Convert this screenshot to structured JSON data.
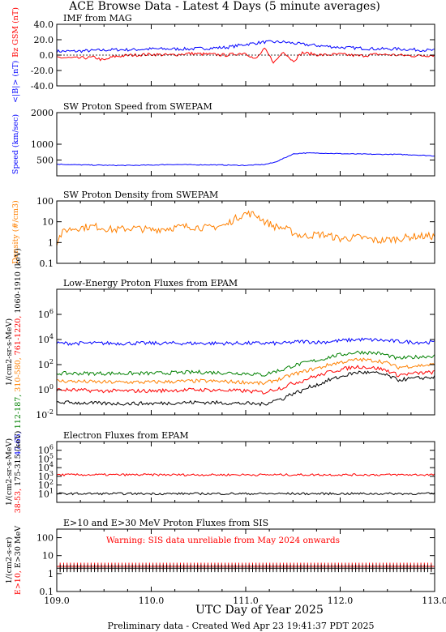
{
  "header": {
    "title": "ACE Browse Data - Latest 4 Days (5 minute averages)",
    "xlabel": "UTC Day of Year 2025",
    "footer": "Preliminary data - Created Wed Apr 23 19:41:37 PDT 2025",
    "warning": "Warning: SIS data unreliable from May 2024 onwards"
  },
  "chart_data": [
    {
      "type": "line",
      "title": "IMF from MAG",
      "ylabel_parts": [
        {
          "text": "<|B|> (nT)",
          "color": "#0000ff"
        },
        {
          "text": "Bz GSM (nT)",
          "color": "#ff0000"
        }
      ],
      "xlim": [
        109.0,
        113.0
      ],
      "ylim": [
        -40,
        40
      ],
      "yscale": "linear",
      "y_ticks": [
        "40.0",
        "20.0",
        "0.0",
        "-20.0",
        "-40.0"
      ],
      "x_ticks": [
        "109.0",
        "110.0",
        "111.0",
        "112.0",
        "113.0"
      ],
      "series": [
        {
          "color": "#0000ff",
          "x": [
            109.0,
            109.2,
            109.4,
            109.6,
            109.8,
            110.0,
            110.2,
            110.4,
            110.6,
            110.8,
            111.0,
            111.2,
            111.4,
            111.6,
            111.8,
            112.0,
            112.2,
            112.4,
            112.6,
            112.8,
            113.0
          ],
          "y": [
            5,
            5,
            6,
            7,
            7,
            8,
            8,
            8,
            9,
            10,
            14,
            17,
            17,
            14,
            12,
            10,
            9,
            8,
            8,
            7,
            6
          ]
        },
        {
          "color": "#ff0000",
          "x": [
            109.0,
            109.2,
            109.4,
            109.5,
            109.6,
            109.8,
            110.0,
            110.2,
            110.4,
            110.6,
            110.8,
            111.0,
            111.1,
            111.2,
            111.3,
            111.4,
            111.5,
            111.6,
            111.8,
            112.0,
            112.2,
            112.4,
            112.6,
            112.8,
            113.0
          ],
          "y": [
            -3,
            -4,
            -3,
            -7,
            -2,
            0,
            1,
            0,
            2,
            1,
            0,
            3,
            -6,
            8,
            -10,
            5,
            -8,
            3,
            0,
            1,
            -1,
            1,
            0,
            -1,
            0
          ]
        }
      ]
    },
    {
      "type": "line",
      "title": "SW Proton Speed from SWEPAM",
      "ylabel_parts": [
        {
          "text": "Speed (km/sec)",
          "color": "#0000ff"
        }
      ],
      "xlim": [
        109.0,
        113.0
      ],
      "ylim": [
        0,
        2000
      ],
      "yscale": "linear",
      "y_ticks": [
        "2000",
        "1000",
        "500"
      ],
      "x_ticks": [
        "109.0",
        "110.0",
        "111.0",
        "112.0",
        "113.0"
      ],
      "series": [
        {
          "color": "#0000ff",
          "x": [
            109.0,
            109.2,
            109.4,
            109.6,
            109.8,
            110.0,
            110.2,
            110.4,
            110.6,
            110.8,
            111.0,
            111.2,
            111.3,
            111.4,
            111.5,
            111.6,
            111.8,
            112.0,
            112.2,
            112.4,
            112.6,
            112.8,
            113.0
          ],
          "y": [
            370,
            350,
            340,
            330,
            330,
            340,
            360,
            350,
            350,
            340,
            330,
            360,
            420,
            550,
            690,
            720,
            720,
            700,
            690,
            680,
            680,
            660,
            630
          ]
        }
      ]
    },
    {
      "type": "line",
      "title": "SW Proton Density from SWEPAM",
      "ylabel_parts": [
        {
          "text": "Density (#/cm3)",
          "color": "#ff8000"
        }
      ],
      "xlim": [
        109.0,
        113.0
      ],
      "ylim": [
        0.1,
        100
      ],
      "yscale": "log",
      "y_ticks": [
        "100",
        "10",
        "1",
        "0.1"
      ],
      "x_ticks": [
        "109.0",
        "110.0",
        "111.0",
        "112.0",
        "113.0"
      ],
      "series": [
        {
          "color": "#ff8000",
          "x": [
            109.0,
            109.1,
            109.2,
            109.4,
            109.6,
            109.8,
            110.0,
            110.2,
            110.4,
            110.6,
            110.8,
            110.9,
            111.0,
            111.1,
            111.2,
            111.3,
            111.4,
            111.5,
            111.6,
            111.8,
            112.0,
            112.2,
            112.4,
            112.6,
            112.8,
            113.0
          ],
          "y": [
            1.0,
            4.0,
            5.0,
            6.0,
            4.0,
            5.0,
            4.0,
            5.0,
            6.0,
            5.0,
            7.0,
            15.0,
            25.0,
            22.0,
            10.0,
            6.0,
            5.0,
            3.0,
            2.0,
            2.5,
            1.5,
            1.8,
            1.2,
            1.5,
            2.0,
            2.0
          ]
        }
      ]
    },
    {
      "type": "line",
      "title": "Low-Energy Proton Fluxes from EPAM",
      "ylabel_parts": [
        {
          "text": "1/(cm2-sr-s-MeV)",
          "color": "#000000"
        },
        {
          "text": "47-65,",
          "color": "#0000ff"
        },
        {
          "text": "112-187,",
          "color": "#008000"
        },
        {
          "text": "310-580,",
          "color": "#ff8000"
        },
        {
          "text": "761-1220,",
          "color": "#ff0000"
        },
        {
          "text": "1060-1910 (keV)",
          "color": "#000000"
        }
      ],
      "xlim": [
        109.0,
        113.0
      ],
      "ylim": [
        0.01,
        100000000
      ],
      "yscale": "log",
      "y_ticks": [
        "10^6",
        "10^4",
        "10^2",
        "10^0",
        "10^-2"
      ],
      "x_ticks": [
        "109.0",
        "110.0",
        "111.0",
        "112.0",
        "113.0"
      ],
      "series": [
        {
          "name": "47-65",
          "color": "#0000ff",
          "x": [
            109.0,
            109.5,
            110.0,
            110.5,
            111.0,
            111.2,
            111.4,
            111.6,
            111.8,
            112.0,
            112.2,
            112.4,
            112.6,
            112.8,
            113.0
          ],
          "y": [
            5000,
            5000,
            5000,
            5000,
            5000,
            5000,
            5000,
            7000,
            6000,
            8000,
            10000,
            9000,
            7000,
            6000,
            6000
          ]
        },
        {
          "name": "112-187",
          "color": "#008000",
          "x": [
            109.0,
            109.5,
            110.0,
            110.5,
            111.0,
            111.2,
            111.4,
            111.6,
            111.8,
            112.0,
            112.2,
            112.4,
            112.6,
            112.8,
            113.0
          ],
          "y": [
            20,
            20,
            20,
            25,
            20,
            15,
            40,
            120,
            250,
            600,
            1000,
            800,
            300,
            400,
            500
          ]
        },
        {
          "name": "310-580",
          "color": "#ff8000",
          "x": [
            109.0,
            109.5,
            110.0,
            110.5,
            111.0,
            111.2,
            111.4,
            111.6,
            111.8,
            112.0,
            112.2,
            112.4,
            112.6,
            112.8,
            113.0
          ],
          "y": [
            5,
            4,
            4,
            5,
            4,
            3,
            8,
            25,
            60,
            150,
            250,
            200,
            60,
            80,
            100
          ]
        },
        {
          "name": "761-1220",
          "color": "#ff0000",
          "x": [
            109.0,
            109.5,
            110.0,
            110.5,
            111.0,
            111.2,
            111.4,
            111.6,
            111.8,
            112.0,
            112.2,
            112.4,
            112.6,
            112.8,
            113.0
          ],
          "y": [
            1,
            0.8,
            0.8,
            1,
            0.8,
            0.6,
            1.5,
            5,
            15,
            40,
            70,
            50,
            15,
            20,
            25
          ]
        },
        {
          "name": "1060-1910",
          "color": "#000000",
          "x": [
            109.0,
            109.5,
            110.0,
            110.5,
            111.0,
            111.2,
            111.4,
            111.6,
            111.8,
            112.0,
            112.2,
            112.4,
            112.6,
            112.8,
            113.0
          ],
          "y": [
            0.1,
            0.08,
            0.08,
            0.1,
            0.08,
            0.07,
            0.2,
            0.8,
            3,
            10,
            25,
            20,
            6,
            8,
            10
          ]
        }
      ]
    },
    {
      "type": "line",
      "title": "Electron Fluxes from EPAM",
      "ylabel_parts": [
        {
          "text": "1/(cm2-sr-s-MeV)",
          "color": "#000000"
        },
        {
          "text": "38-53,",
          "color": "#ff0000"
        },
        {
          "text": "175-315 (keV)",
          "color": "#000000"
        }
      ],
      "xlim": [
        109.0,
        113.0
      ],
      "ylim": [
        1,
        10000000
      ],
      "yscale": "log",
      "y_ticks": [
        "10^6",
        "10^5",
        "10^4",
        "10^3",
        "10^2",
        "10^1"
      ],
      "x_ticks": [
        "109.0",
        "110.0",
        "111.0",
        "112.0",
        "113.0"
      ],
      "series": [
        {
          "name": "38-53",
          "color": "#ff0000",
          "x": [
            109.0,
            110.0,
            111.0,
            112.0,
            113.0
          ],
          "y": [
            1500,
            1500,
            1500,
            1500,
            1500
          ]
        },
        {
          "name": "175-315",
          "color": "#000000",
          "x": [
            109.0,
            110.0,
            111.0,
            112.0,
            113.0
          ],
          "y": [
            10,
            10,
            10,
            10,
            10
          ]
        }
      ]
    },
    {
      "type": "line",
      "title": "E>10 and E>30 MeV Proton Fluxes from SIS",
      "ylabel_parts": [
        {
          "text": "1/(cm2-s-sr)",
          "color": "#000000"
        },
        {
          "text": "E>10,",
          "color": "#ff0000"
        },
        {
          "text": "E>30 MeV",
          "color": "#000000"
        }
      ],
      "xlim": [
        109.0,
        113.0
      ],
      "ylim": [
        0.1,
        300
      ],
      "yscale": "log",
      "y_ticks": [
        "100",
        "10",
        "1",
        "0.1"
      ],
      "x_ticks": [
        "109.0",
        "110.0",
        "111.0",
        "112.0",
        "113.0"
      ],
      "series": [
        {
          "name": "E>10",
          "color": "#ff0000",
          "x": [
            109.0,
            110.0,
            111.0,
            112.0,
            113.0
          ],
          "y": [
            2.5,
            2.5,
            2.5,
            2.5,
            2.5
          ]
        },
        {
          "name": "E>30 MeV",
          "color": "#000000",
          "x": [
            109.0,
            110.0,
            111.0,
            112.0,
            113.0
          ],
          "y": [
            2,
            2,
            2,
            2,
            2
          ]
        }
      ]
    }
  ]
}
